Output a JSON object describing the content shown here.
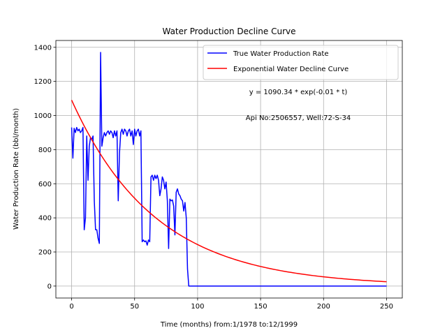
{
  "chart_data": {
    "type": "line",
    "title": "Water Production Decline Curve",
    "xlabel": "Time (months) from:1/1978 to:12/1999",
    "ylabel": "Water Production Rate (bbl/month)",
    "xlim": [
      -12.5,
      262.5
    ],
    "ylim": [
      -70,
      1440
    ],
    "xticks": [
      0,
      50,
      100,
      150,
      200,
      250
    ],
    "yticks": [
      0,
      200,
      400,
      600,
      800,
      1000,
      1200,
      1400
    ],
    "grid": true,
    "legend_position": "top-right",
    "annotations": [
      {
        "text": "y = 1090.34 * exp(-0.01 * t)",
        "x": 181,
        "y": 1115
      },
      {
        "text": "Api No:2506557, Well:72-S-34",
        "x": 181,
        "y": 980
      }
    ],
    "series": [
      {
        "name": "True Water Production Rate",
        "color": "#0000ff",
        "x": [
          0,
          1,
          2,
          3,
          4,
          5,
          6,
          7,
          8,
          9,
          10,
          11,
          12,
          13,
          14,
          15,
          16,
          17,
          18,
          19,
          20,
          21,
          22,
          23,
          24,
          25,
          26,
          27,
          28,
          29,
          30,
          31,
          32,
          33,
          34,
          35,
          36,
          37,
          38,
          39,
          40,
          41,
          42,
          43,
          44,
          45,
          46,
          47,
          48,
          49,
          50,
          51,
          52,
          53,
          54,
          55,
          56,
          57,
          58,
          59,
          60,
          61,
          62,
          63,
          64,
          65,
          66,
          67,
          68,
          69,
          70,
          71,
          72,
          73,
          74,
          75,
          76,
          77,
          78,
          79,
          80,
          81,
          82,
          83,
          84,
          85,
          86,
          87,
          88,
          89,
          90,
          91,
          92,
          93,
          94,
          95,
          96,
          97,
          98,
          99,
          100,
          110,
          130,
          150,
          175,
          200,
          225,
          250
        ],
        "y": [
          930,
          750,
          925,
          900,
          930,
          910,
          920,
          900,
          910,
          930,
          330,
          400,
          880,
          620,
          820,
          870,
          860,
          880,
          500,
          330,
          330,
          280,
          250,
          1370,
          820,
          870,
          900,
          880,
          900,
          910,
          890,
          910,
          900,
          870,
          910,
          880,
          910,
          500,
          780,
          900,
          920,
          890,
          920,
          910,
          880,
          910,
          920,
          880,
          910,
          830,
          920,
          880,
          910,
          920,
          880,
          910,
          260,
          270,
          260,
          265,
          240,
          270,
          260,
          640,
          650,
          620,
          650,
          630,
          650,
          620,
          530,
          570,
          640,
          620,
          570,
          610,
          500,
          220,
          510,
          500,
          505,
          470,
          300,
          550,
          570,
          540,
          530,
          510,
          500,
          440,
          490,
          400,
          100,
          0,
          0,
          0,
          0,
          0,
          0,
          0,
          0,
          0,
          0,
          0,
          0,
          0,
          0,
          0
        ]
      },
      {
        "name": "Exponential Water Decline Curve",
        "color": "#ff0000",
        "function": {
          "a": 1090.34,
          "k": 0.015,
          "t_start": 0,
          "t_end": 250
        }
      }
    ]
  }
}
